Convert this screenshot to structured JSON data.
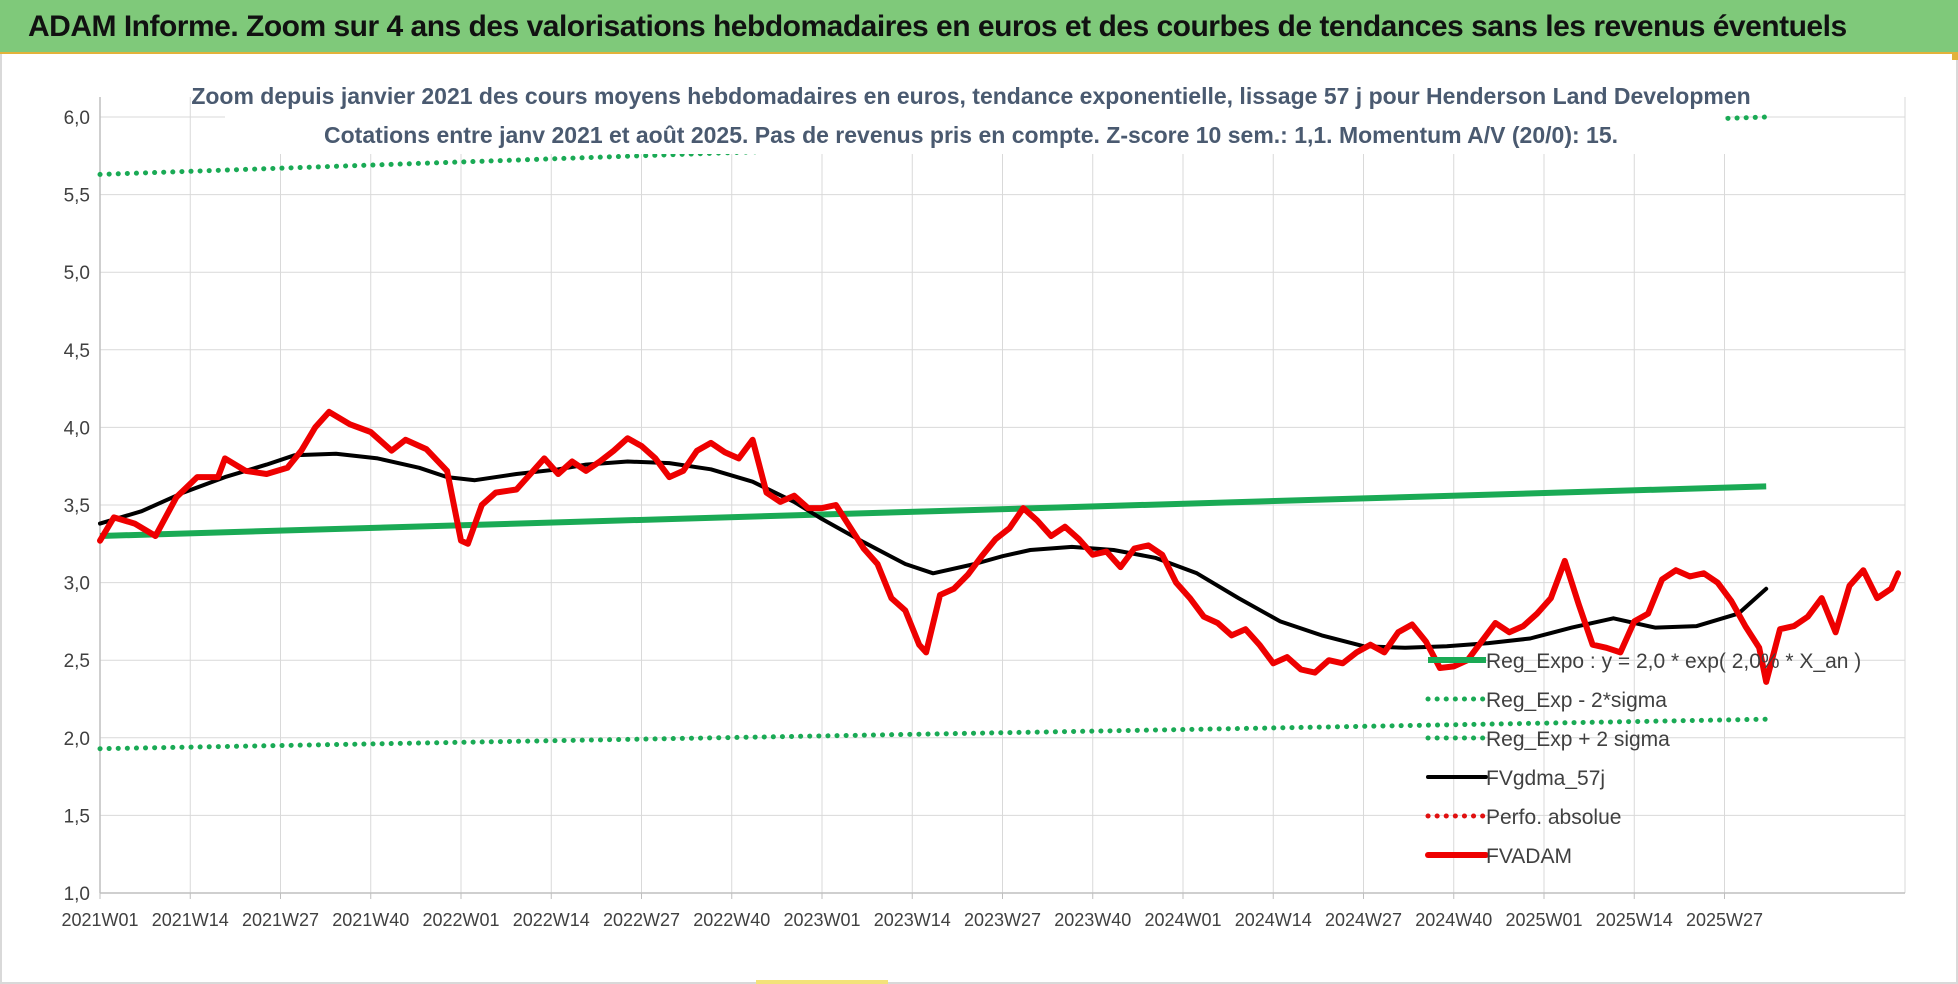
{
  "banner": {
    "title": "ADAM Informe. Zoom sur 4 ans des valorisations hebdomadaires en euros et des courbes de tendances sans les revenus éventuels"
  },
  "colors": {
    "banner_bg": "#7fc97a",
    "reg_expo": "#1aaa55",
    "fvgdma": "#000000",
    "fvadam": "#ee0000",
    "perfo": "#e01010"
  },
  "chart_data": {
    "type": "line",
    "title": "Zoom depuis janvier 2021 des cours moyens hebdomadaires en euros, tendance exponentielle, lissage 57 j pour Henderson Land Developmen",
    "subtitle": "Cotations entre janv 2021 et août 2025.  Pas de revenus pris en compte. Z-score 10 sem.: 1,1. Momentum A/V (20/0): 15.",
    "xlabel": "",
    "ylabel": "",
    "ylim": [
      1.0,
      6.0
    ],
    "y_ticks": [
      "1,0",
      "1,5",
      "2,0",
      "2,5",
      "3,0",
      "3,5",
      "4,0",
      "4,5",
      "5,0",
      "5,5",
      "6,0"
    ],
    "x_ticks": [
      "2021W01",
      "2021W14",
      "2021W27",
      "2021W40",
      "2022W01",
      "2022W14",
      "2022W27",
      "2022W40",
      "2023W01",
      "2023W14",
      "2023W27",
      "2023W40",
      "2024W01",
      "2024W14",
      "2024W27",
      "2024W40",
      "2025W01",
      "2025W14",
      "2025W27"
    ],
    "x_range": [
      "2021W01",
      "2025W31"
    ],
    "grid": true,
    "legend_position": "bottom-right, inside plot",
    "series": [
      {
        "name": "Reg_Expo : y = 2,0 * exp( 2,0% * X_an )",
        "style": "solid",
        "color": "#1aaa55",
        "points": [
          [
            0,
            3.3
          ],
          [
            240,
            3.62
          ]
        ]
      },
      {
        "name": "Reg_Exp - 2*sigma",
        "style": "dotted",
        "color": "#1aaa55",
        "points": [
          [
            0,
            1.93
          ],
          [
            240,
            2.12
          ]
        ]
      },
      {
        "name": "Reg_Exp + 2 sigma",
        "style": "dotted",
        "color": "#1aaa55",
        "points": [
          [
            0,
            5.63
          ],
          [
            240,
            6.0
          ]
        ]
      },
      {
        "name": "FVgdma_57j",
        "style": "solid",
        "color": "#000000",
        "points": [
          [
            0,
            3.38
          ],
          [
            6,
            3.46
          ],
          [
            12,
            3.58
          ],
          [
            18,
            3.68
          ],
          [
            24,
            3.76
          ],
          [
            28,
            3.82
          ],
          [
            34,
            3.83
          ],
          [
            40,
            3.8
          ],
          [
            46,
            3.74
          ],
          [
            50,
            3.68
          ],
          [
            54,
            3.66
          ],
          [
            60,
            3.7
          ],
          [
            66,
            3.73
          ],
          [
            70,
            3.76
          ],
          [
            76,
            3.78
          ],
          [
            82,
            3.77
          ],
          [
            88,
            3.73
          ],
          [
            94,
            3.65
          ],
          [
            100,
            3.52
          ],
          [
            104,
            3.41
          ],
          [
            110,
            3.26
          ],
          [
            116,
            3.12
          ],
          [
            120,
            3.06
          ],
          [
            126,
            3.12
          ],
          [
            130,
            3.17
          ],
          [
            134,
            3.21
          ],
          [
            140,
            3.23
          ],
          [
            146,
            3.21
          ],
          [
            152,
            3.16
          ],
          [
            158,
            3.06
          ],
          [
            164,
            2.9
          ],
          [
            170,
            2.75
          ],
          [
            176,
            2.66
          ],
          [
            182,
            2.59
          ],
          [
            188,
            2.58
          ],
          [
            194,
            2.59
          ],
          [
            200,
            2.61
          ],
          [
            206,
            2.64
          ],
          [
            212,
            2.71
          ],
          [
            218,
            2.77
          ],
          [
            224,
            2.71
          ],
          [
            230,
            2.72
          ],
          [
            236,
            2.8
          ],
          [
            240,
            2.96
          ]
        ]
      },
      {
        "name": "Perfo. absolue",
        "style": "dotted",
        "color": "#e01010",
        "points": []
      },
      {
        "name": "FVADAM",
        "style": "solid",
        "color": "#ee0000",
        "points": [
          [
            0,
            3.27
          ],
          [
            2,
            3.42
          ],
          [
            5,
            3.38
          ],
          [
            8,
            3.3
          ],
          [
            11,
            3.55
          ],
          [
            14,
            3.68
          ],
          [
            17,
            3.68
          ],
          [
            18,
            3.8
          ],
          [
            21,
            3.72
          ],
          [
            24,
            3.7
          ],
          [
            27,
            3.74
          ],
          [
            29,
            3.85
          ],
          [
            31,
            4.0
          ],
          [
            33,
            4.1
          ],
          [
            36,
            4.02
          ],
          [
            39,
            3.97
          ],
          [
            42,
            3.85
          ],
          [
            44,
            3.92
          ],
          [
            47,
            3.86
          ],
          [
            50,
            3.72
          ],
          [
            52,
            3.27
          ],
          [
            53,
            3.25
          ],
          [
            55,
            3.5
          ],
          [
            57,
            3.58
          ],
          [
            60,
            3.6
          ],
          [
            62,
            3.7
          ],
          [
            64,
            3.8
          ],
          [
            66,
            3.7
          ],
          [
            68,
            3.78
          ],
          [
            70,
            3.72
          ],
          [
            72,
            3.78
          ],
          [
            74,
            3.85
          ],
          [
            76,
            3.93
          ],
          [
            78,
            3.88
          ],
          [
            80,
            3.8
          ],
          [
            82,
            3.68
          ],
          [
            84,
            3.72
          ],
          [
            86,
            3.85
          ],
          [
            88,
            3.9
          ],
          [
            90,
            3.84
          ],
          [
            92,
            3.8
          ],
          [
            94,
            3.92
          ],
          [
            96,
            3.58
          ],
          [
            98,
            3.52
          ],
          [
            100,
            3.56
          ],
          [
            102,
            3.48
          ],
          [
            104,
            3.48
          ],
          [
            106,
            3.5
          ],
          [
            108,
            3.36
          ],
          [
            110,
            3.22
          ],
          [
            112,
            3.12
          ],
          [
            114,
            2.9
          ],
          [
            116,
            2.82
          ],
          [
            118,
            2.6
          ],
          [
            119,
            2.55
          ],
          [
            121,
            2.92
          ],
          [
            123,
            2.96
          ],
          [
            125,
            3.05
          ],
          [
            127,
            3.17
          ],
          [
            129,
            3.28
          ],
          [
            131,
            3.35
          ],
          [
            133,
            3.48
          ],
          [
            135,
            3.4
          ],
          [
            137,
            3.3
          ],
          [
            139,
            3.36
          ],
          [
            141,
            3.28
          ],
          [
            143,
            3.18
          ],
          [
            145,
            3.2
          ],
          [
            147,
            3.1
          ],
          [
            149,
            3.22
          ],
          [
            151,
            3.24
          ],
          [
            153,
            3.18
          ],
          [
            155,
            3.0
          ],
          [
            157,
            2.9
          ],
          [
            159,
            2.78
          ],
          [
            161,
            2.74
          ],
          [
            163,
            2.66
          ],
          [
            165,
            2.7
          ],
          [
            167,
            2.6
          ],
          [
            169,
            2.48
          ],
          [
            171,
            2.52
          ],
          [
            173,
            2.44
          ],
          [
            175,
            2.42
          ],
          [
            177,
            2.5
          ],
          [
            179,
            2.48
          ],
          [
            181,
            2.55
          ],
          [
            183,
            2.6
          ],
          [
            185,
            2.55
          ],
          [
            187,
            2.68
          ],
          [
            189,
            2.73
          ],
          [
            191,
            2.62
          ],
          [
            193,
            2.45
          ],
          [
            195,
            2.46
          ],
          [
            197,
            2.5
          ],
          [
            199,
            2.62
          ],
          [
            201,
            2.74
          ],
          [
            203,
            2.68
          ],
          [
            205,
            2.72
          ],
          [
            207,
            2.8
          ],
          [
            209,
            2.9
          ],
          [
            211,
            3.14
          ],
          [
            213,
            2.86
          ],
          [
            215,
            2.6
          ],
          [
            217,
            2.58
          ],
          [
            219,
            2.55
          ],
          [
            221,
            2.75
          ],
          [
            223,
            2.8
          ],
          [
            225,
            3.02
          ],
          [
            227,
            3.08
          ],
          [
            229,
            3.04
          ],
          [
            231,
            3.06
          ],
          [
            233,
            3.0
          ],
          [
            235,
            2.88
          ],
          [
            237,
            2.72
          ],
          [
            239,
            2.58
          ],
          [
            240,
            2.36
          ],
          [
            242,
            2.7
          ],
          [
            244,
            2.72
          ],
          [
            246,
            2.78
          ],
          [
            248,
            2.9
          ],
          [
            250,
            2.68
          ],
          [
            252,
            2.98
          ],
          [
            254,
            3.08
          ],
          [
            256,
            2.9
          ],
          [
            258,
            2.96
          ],
          [
            259,
            3.06
          ]
        ]
      }
    ]
  }
}
